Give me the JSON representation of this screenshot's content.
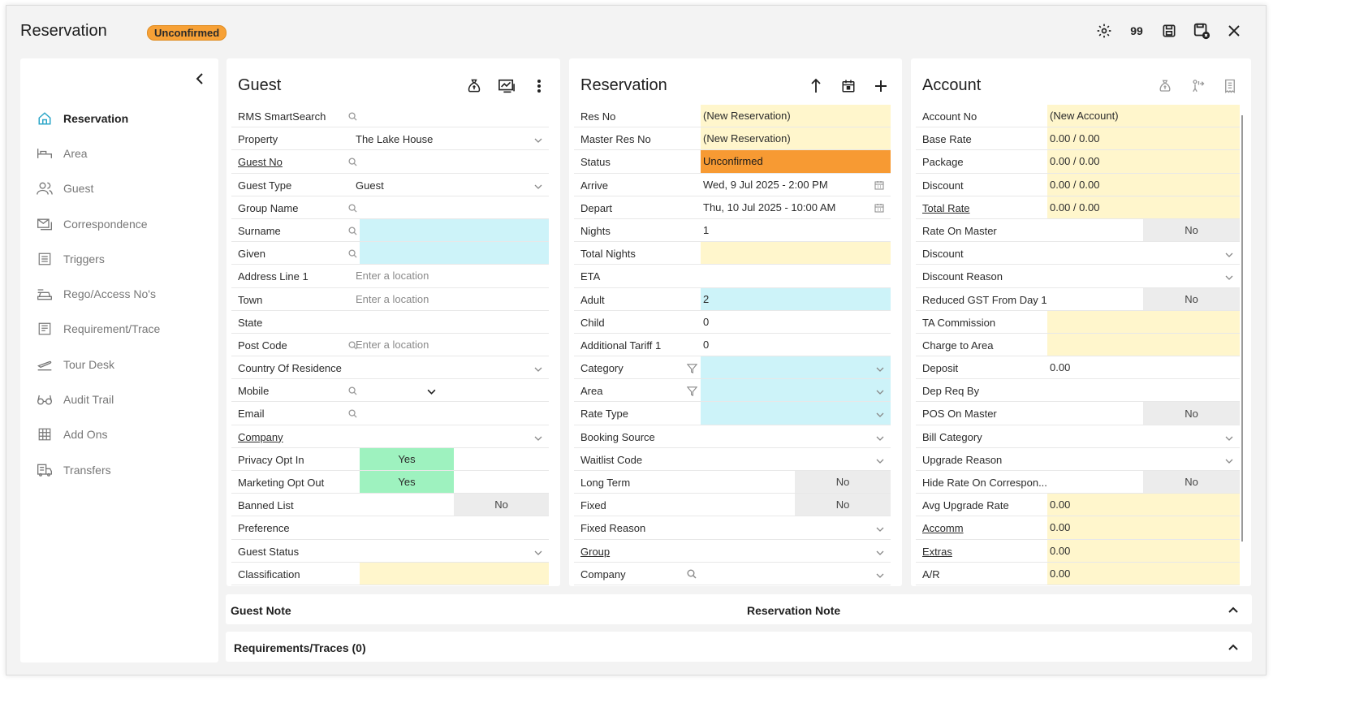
{
  "window": {
    "title": "Reservation",
    "status_badge": "Unconfirmed",
    "count_label": "99"
  },
  "sidebar": {
    "items": [
      {
        "label": "Reservation",
        "icon": "home-icon",
        "active": true
      },
      {
        "label": "Area",
        "icon": "bed-icon"
      },
      {
        "label": "Guest",
        "icon": "users-icon"
      },
      {
        "label": "Correspondence",
        "icon": "mail-icon"
      },
      {
        "label": "Triggers",
        "icon": "triggers-icon"
      },
      {
        "label": "Rego/Access No's",
        "icon": "car-icon"
      },
      {
        "label": "Requirement/Trace",
        "icon": "list-icon"
      },
      {
        "label": "Tour Desk",
        "icon": "plane-icon"
      },
      {
        "label": "Audit Trail",
        "icon": "glasses-icon"
      },
      {
        "label": "Add Ons",
        "icon": "grid-icon"
      },
      {
        "label": "Transfers",
        "icon": "bus-icon"
      }
    ]
  },
  "guest": {
    "title": "Guest",
    "rows": {
      "smartsearch": "RMS SmartSearch",
      "property": "Property",
      "property_value": "The Lake House",
      "guest_no": "Guest No",
      "guest_type": "Guest Type",
      "guest_type_value": "Guest",
      "group_name": "Group Name",
      "surname": "Surname",
      "given": "Given",
      "address1": "Address Line 1",
      "address1_placeholder": "Enter a location",
      "town": "Town",
      "town_placeholder": "Enter a location",
      "state": "State",
      "postcode": "Post Code",
      "postcode_placeholder": "Enter a location",
      "country": "Country Of Residence",
      "mobile": "Mobile",
      "email": "Email",
      "company": "Company",
      "privacy": "Privacy Opt In",
      "privacy_value": "Yes",
      "marketing": "Marketing Opt Out",
      "marketing_value": "Yes",
      "banned": "Banned List",
      "banned_value": "No",
      "preference": "Preference",
      "guest_status": "Guest Status",
      "classification": "Classification"
    }
  },
  "reservation": {
    "title": "Reservation",
    "rows": {
      "res_no": "Res No",
      "res_no_value": "(New Reservation)",
      "master_res_no": "Master Res No",
      "master_res_no_value": "(New Reservation)",
      "status": "Status",
      "status_value": "Unconfirmed",
      "arrive": "Arrive",
      "arrive_value": "Wed, 9 Jul 2025 - 2:00 PM",
      "depart": "Depart",
      "depart_value": "Thu, 10 Jul 2025 - 10:00 AM",
      "nights": "Nights",
      "nights_value": "1",
      "total_nights": "Total Nights",
      "eta": "ETA",
      "adult": "Adult",
      "adult_value": "2",
      "child": "Child",
      "child_value": "0",
      "tariff": "Additional Tariff 1",
      "tariff_value": "0",
      "category": "Category",
      "area": "Area",
      "rate_type": "Rate Type",
      "booking_source": "Booking Source",
      "waitlist": "Waitlist Code",
      "long_term": "Long Term",
      "long_term_value": "No",
      "fixed": "Fixed",
      "fixed_value": "No",
      "fixed_reason": "Fixed Reason",
      "group": "Group",
      "company": "Company"
    }
  },
  "account": {
    "title": "Account",
    "rows": {
      "account_no": "Account No",
      "account_no_value": "(New Account)",
      "base_rate": "Base Rate",
      "base_rate_value": "0.00 / 0.00",
      "package": "Package",
      "package_value": "0.00 / 0.00",
      "discount_rate": "Discount",
      "discount_rate_value": "0.00 / 0.00",
      "total_rate": "Total Rate",
      "total_rate_value": "0.00 / 0.00",
      "rate_on_master": "Rate On Master",
      "rate_on_master_value": "No",
      "discount": "Discount",
      "discount_reason": "Discount Reason",
      "reduced_gst": "Reduced GST From Day 1",
      "reduced_gst_value": "No",
      "ta_commission": "TA Commission",
      "charge_to_area": "Charge to Area",
      "deposit": "Deposit",
      "deposit_value": "0.00",
      "dep_req_by": "Dep Req By",
      "pos_on_master": "POS On Master",
      "pos_on_master_value": "No",
      "bill_category": "Bill Category",
      "upgrade_reason": "Upgrade Reason",
      "hide_rate": "Hide Rate On Correspon...",
      "hide_rate_value": "No",
      "avg_upgrade": "Avg Upgrade Rate",
      "avg_upgrade_value": "0.00",
      "accomm": "Accomm",
      "accomm_value": "0.00",
      "extras": "Extras",
      "extras_value": "0.00",
      "ar": "A/R",
      "ar_value": "0.00"
    }
  },
  "notes": {
    "guest_note": "Guest Note",
    "reservation_note": "Reservation Note",
    "requirements": "Requirements/Traces (0)"
  },
  "colors": {
    "accent_orange": "#f79a33",
    "field_yellow": "#fff6cc",
    "field_cyan": "#cdf3f9",
    "field_green": "#9ef2bf"
  }
}
